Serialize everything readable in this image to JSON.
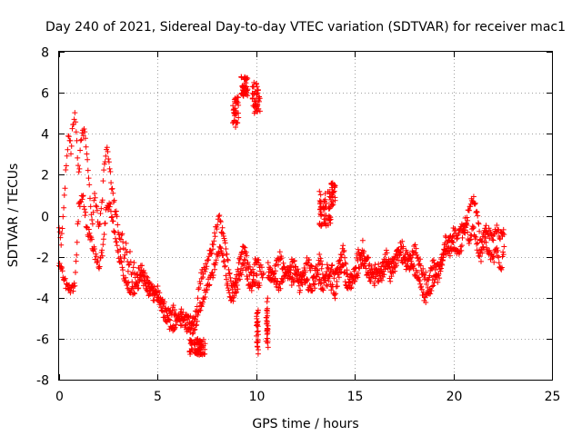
{
  "chart_data": {
    "type": "scatter",
    "title": "Day 240 of 2021, Sidereal Day-to-day VTEC variation (SDTVAR) for receiver mac1",
    "xlabel": "GPS time / hours",
    "ylabel": "SDTVAR / TECUs",
    "xlim": [
      0,
      25
    ],
    "ylim": [
      -8,
      8
    ],
    "xticks": [
      "0",
      "5",
      "10",
      "15",
      "20",
      "25"
    ],
    "yticks": [
      "-8",
      "-6",
      "-4",
      "-2",
      "0",
      "2",
      "4",
      "6",
      "8"
    ],
    "grid": true,
    "marker": "plus",
    "color": "#ff0000",
    "series": [
      {
        "name": "mac1",
        "trace": [
          [
            0.0,
            -0.5
          ],
          [
            0.1,
            -1.5
          ],
          [
            0.2,
            -0.2
          ],
          [
            0.3,
            1.5
          ],
          [
            0.4,
            3.0
          ],
          [
            0.5,
            4.0
          ],
          [
            0.6,
            3.2
          ],
          [
            0.7,
            4.5
          ],
          [
            0.8,
            5.0
          ],
          [
            0.9,
            3.5
          ],
          [
            1.0,
            2.0
          ],
          [
            1.1,
            3.5
          ],
          [
            1.2,
            4.0
          ],
          [
            1.3,
            4.0
          ],
          [
            1.4,
            3.0
          ],
          [
            1.5,
            2.0
          ],
          [
            1.6,
            0.5
          ],
          [
            1.7,
            -0.5
          ],
          [
            1.8,
            1.0
          ],
          [
            1.9,
            0.5
          ],
          [
            2.0,
            -0.5
          ],
          [
            2.1,
            0.0
          ],
          [
            2.2,
            1.0
          ],
          [
            2.3,
            2.5
          ],
          [
            2.4,
            3.2
          ],
          [
            2.5,
            3.0
          ],
          [
            2.6,
            2.0
          ],
          [
            2.7,
            1.2
          ],
          [
            2.8,
            0.5
          ],
          [
            2.9,
            0.0
          ],
          [
            3.0,
            -0.8
          ],
          [
            3.1,
            -1.5
          ],
          [
            3.2,
            -1.0
          ],
          [
            3.3,
            -2.0
          ],
          [
            3.4,
            -1.5
          ],
          [
            3.5,
            -2.5
          ],
          [
            3.6,
            -2.0
          ],
          [
            3.7,
            -3.0
          ],
          [
            3.8,
            -2.5
          ],
          [
            3.9,
            -3.2
          ],
          [
            4.0,
            -3.5
          ],
          [
            4.2,
            -3.0
          ],
          [
            4.4,
            -3.5
          ],
          [
            4.6,
            -3.8
          ],
          [
            4.8,
            -3.5
          ],
          [
            5.0,
            -4.0
          ],
          [
            5.2,
            -4.2
          ],
          [
            5.4,
            -4.5
          ],
          [
            5.6,
            -4.8
          ],
          [
            5.8,
            -4.6
          ],
          [
            6.0,
            -5.0
          ],
          [
            6.2,
            -5.2
          ],
          [
            6.4,
            -4.8
          ],
          [
            6.6,
            -5.0
          ],
          [
            6.8,
            -5.2
          ],
          [
            7.0,
            -4.5
          ],
          [
            7.1,
            -3.5
          ],
          [
            7.2,
            -3.0
          ],
          [
            7.4,
            -2.5
          ],
          [
            7.6,
            -2.0
          ],
          [
            7.8,
            -1.5
          ],
          [
            8.0,
            -0.5
          ],
          [
            8.1,
            0.0
          ],
          [
            8.2,
            -0.5
          ],
          [
            8.4,
            -1.0
          ],
          [
            8.6,
            -2.5
          ],
          [
            8.8,
            -3.5
          ],
          [
            9.0,
            -3.0
          ],
          [
            9.2,
            -2.0
          ],
          [
            9.4,
            -1.5
          ],
          [
            9.6,
            -2.5
          ],
          [
            9.8,
            -3.0
          ],
          [
            10.0,
            -2.0
          ],
          [
            10.2,
            -2.5
          ],
          [
            10.4,
            -3.0
          ]
        ],
        "trace_b": [
          [
            0.0,
            -2.5
          ],
          [
            0.2,
            -2.8
          ],
          [
            0.4,
            -3.5
          ],
          [
            0.6,
            -3.7
          ],
          [
            0.8,
            -3.5
          ],
          [
            1.0,
            0.5
          ],
          [
            1.2,
            1.0
          ],
          [
            1.4,
            -0.5
          ],
          [
            1.6,
            -1.2
          ],
          [
            1.8,
            -1.8
          ],
          [
            2.0,
            -2.5
          ],
          [
            2.2,
            -1.8
          ],
          [
            2.4,
            0.5
          ],
          [
            2.6,
            0.5
          ],
          [
            2.8,
            -0.8
          ],
          [
            3.0,
            -1.8
          ],
          [
            3.2,
            -2.6
          ],
          [
            3.4,
            -3.2
          ],
          [
            3.6,
            -3.6
          ],
          [
            3.8,
            -3.8
          ],
          [
            4.0,
            -2.8
          ],
          [
            4.2,
            -2.6
          ],
          [
            4.4,
            -3.2
          ],
          [
            4.6,
            -3.3
          ],
          [
            4.8,
            -4.0
          ],
          [
            5.0,
            -3.6
          ],
          [
            5.2,
            -4.5
          ],
          [
            5.4,
            -5.0
          ],
          [
            5.6,
            -5.3
          ],
          [
            5.8,
            -5.5
          ],
          [
            6.0,
            -5.2
          ],
          [
            6.2,
            -4.5
          ],
          [
            6.4,
            -5.5
          ],
          [
            6.6,
            -5.4
          ],
          [
            6.8,
            -5.6
          ],
          [
            7.0,
            -5.0
          ],
          [
            7.2,
            -4.3
          ],
          [
            7.4,
            -3.8
          ],
          [
            7.6,
            -3.2
          ],
          [
            7.8,
            -2.8
          ],
          [
            8.0,
            -2.0
          ],
          [
            8.2,
            -1.5
          ],
          [
            8.4,
            -2.5
          ],
          [
            8.6,
            -3.8
          ],
          [
            8.8,
            -4.0
          ],
          [
            9.0,
            -3.6
          ],
          [
            9.2,
            -2.8
          ],
          [
            9.4,
            -2.2
          ],
          [
            9.6,
            -3.2
          ],
          [
            9.8,
            -3.5
          ],
          [
            10.0,
            -3.0
          ],
          [
            10.2,
            -3.5
          ]
        ],
        "clusters": [
          {
            "x": [
              6.6,
              7.4
            ],
            "y": [
              -6.8,
              -6.0
            ]
          },
          {
            "x": [
              8.8,
              9.1
            ],
            "y": [
              4.3,
              5.8
            ]
          },
          {
            "x": [
              9.2,
              9.6
            ],
            "y": [
              5.8,
              6.8
            ]
          },
          {
            "x": [
              9.8,
              10.2
            ],
            "y": [
              5.0,
              6.5
            ]
          },
          {
            "x": [
              10.0,
              10.1
            ],
            "y": [
              -6.8,
              -4.5
            ]
          },
          {
            "x": [
              10.5,
              10.6
            ],
            "y": [
              -6.5,
              -4.0
            ]
          },
          {
            "x": [
              13.2,
              13.8
            ],
            "y": [
              -0.5,
              1.2
            ]
          },
          {
            "x": [
              13.8,
              14.0
            ],
            "y": [
              0.5,
              1.6
            ]
          }
        ],
        "trace_c": [
          [
            10.6,
            -3.2
          ],
          [
            10.8,
            -3.0
          ],
          [
            11.0,
            -2.5
          ],
          [
            11.2,
            -2.0
          ],
          [
            11.4,
            -2.6
          ],
          [
            11.6,
            -3.0
          ],
          [
            11.8,
            -2.2
          ],
          [
            12.0,
            -2.5
          ],
          [
            12.2,
            -3.0
          ],
          [
            12.4,
            -2.8
          ],
          [
            12.6,
            -2.2
          ],
          [
            12.8,
            -2.6
          ],
          [
            13.0,
            -3.4
          ],
          [
            13.2,
            -2.0
          ],
          [
            13.4,
            -2.8
          ],
          [
            13.6,
            -3.2
          ],
          [
            13.8,
            -2.5
          ],
          [
            14.0,
            -3.0
          ],
          [
            14.2,
            -2.2
          ],
          [
            14.4,
            -1.5
          ],
          [
            14.6,
            -2.8
          ],
          [
            14.8,
            -3.5
          ],
          [
            15.0,
            -2.5
          ],
          [
            15.2,
            -1.8
          ],
          [
            15.4,
            -2.5
          ],
          [
            15.6,
            -2.0
          ],
          [
            15.8,
            -2.6
          ],
          [
            16.0,
            -3.2
          ],
          [
            16.2,
            -2.6
          ],
          [
            16.4,
            -3.0
          ],
          [
            16.6,
            -2.2
          ],
          [
            16.8,
            -2.5
          ],
          [
            17.0,
            -2.0
          ],
          [
            17.2,
            -1.5
          ],
          [
            17.4,
            -2.2
          ],
          [
            17.6,
            -1.8
          ],
          [
            17.8,
            -2.5
          ],
          [
            18.0,
            -1.5
          ],
          [
            18.2,
            -2.0
          ],
          [
            18.4,
            -2.6
          ],
          [
            18.6,
            -3.0
          ],
          [
            18.8,
            -3.8
          ],
          [
            19.0,
            -3.2
          ],
          [
            19.2,
            -2.5
          ],
          [
            19.4,
            -2.0
          ],
          [
            19.6,
            -1.8
          ],
          [
            19.8,
            -1.2
          ],
          [
            20.0,
            -0.8
          ],
          [
            20.2,
            -1.0
          ],
          [
            20.4,
            -0.5
          ],
          [
            20.6,
            -0.8
          ],
          [
            20.8,
            0.5
          ],
          [
            21.0,
            0.8
          ],
          [
            21.2,
            0.2
          ],
          [
            21.4,
            -1.5
          ],
          [
            21.6,
            -0.5
          ],
          [
            21.8,
            -0.8
          ],
          [
            22.0,
            -1.2
          ],
          [
            22.2,
            -0.5
          ],
          [
            22.4,
            -1.0
          ],
          [
            22.6,
            -0.8
          ]
        ],
        "trace_d": [
          [
            10.6,
            -2.5
          ],
          [
            10.8,
            -2.8
          ],
          [
            11.0,
            -3.2
          ],
          [
            11.2,
            -3.5
          ],
          [
            11.4,
            -3.0
          ],
          [
            11.6,
            -2.6
          ],
          [
            11.8,
            -3.2
          ],
          [
            12.0,
            -2.8
          ],
          [
            12.2,
            -3.5
          ],
          [
            12.4,
            -3.0
          ],
          [
            12.6,
            -3.3
          ],
          [
            12.8,
            -3.8
          ],
          [
            13.0,
            -2.6
          ],
          [
            13.2,
            -3.2
          ],
          [
            13.4,
            -3.5
          ],
          [
            13.6,
            -2.6
          ],
          [
            13.8,
            -3.4
          ],
          [
            14.0,
            -3.8
          ],
          [
            14.2,
            -2.8
          ],
          [
            14.4,
            -2.4
          ],
          [
            14.6,
            -3.6
          ],
          [
            14.8,
            -2.8
          ],
          [
            15.0,
            -3.2
          ],
          [
            15.2,
            -2.6
          ],
          [
            15.4,
            -1.4
          ],
          [
            15.6,
            -2.8
          ],
          [
            15.8,
            -3.4
          ],
          [
            16.0,
            -2.4
          ],
          [
            16.2,
            -3.2
          ],
          [
            16.4,
            -2.4
          ],
          [
            16.6,
            -1.8
          ],
          [
            16.8,
            -3.0
          ],
          [
            17.0,
            -2.6
          ],
          [
            17.2,
            -2.0
          ],
          [
            17.4,
            -1.2
          ],
          [
            17.6,
            -2.6
          ],
          [
            17.8,
            -2.0
          ],
          [
            18.0,
            -2.6
          ],
          [
            18.2,
            -3.0
          ],
          [
            18.4,
            -3.6
          ],
          [
            18.6,
            -4.2
          ],
          [
            18.8,
            -2.8
          ],
          [
            19.0,
            -2.2
          ],
          [
            19.2,
            -3.0
          ],
          [
            19.4,
            -2.6
          ],
          [
            19.6,
            -1.2
          ],
          [
            19.8,
            -1.8
          ],
          [
            20.0,
            -1.4
          ],
          [
            20.2,
            -1.8
          ],
          [
            20.4,
            -1.6
          ],
          [
            20.6,
            -0.2
          ],
          [
            20.8,
            -1.2
          ],
          [
            21.0,
            -0.5
          ],
          [
            21.2,
            -1.5
          ],
          [
            21.4,
            -2.0
          ],
          [
            21.6,
            -1.2
          ],
          [
            21.8,
            -1.8
          ],
          [
            22.0,
            -2.2
          ],
          [
            22.2,
            -1.6
          ],
          [
            22.4,
            -2.6
          ],
          [
            22.6,
            -1.5
          ]
        ]
      }
    ]
  }
}
